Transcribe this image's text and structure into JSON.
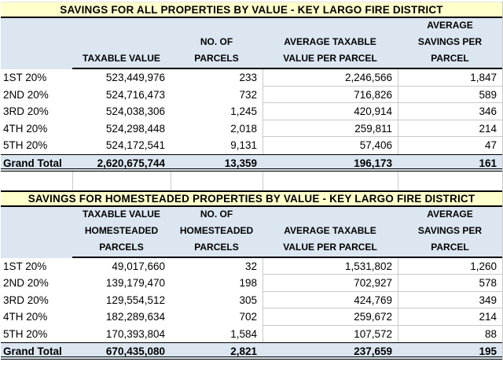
{
  "colors": {
    "title_bg": "#FFFFCC",
    "band_bg": "#DCE6F1",
    "gridline": "#C9C9C9",
    "rule": "#000000"
  },
  "tables": [
    {
      "title": "SAVINGS FOR ALL PROPERTIES BY VALUE - KEY LARGO FIRE DISTRICT",
      "columns": [
        "",
        "TAXABLE VALUE",
        "NO. OF\nPARCELS",
        "AVERAGE TAXABLE\nVALUE PER PARCEL",
        "AVERAGE\nSAVINGS PER\nPARCEL"
      ],
      "rows": [
        {
          "label": "1ST 20%",
          "values": [
            "523,449,976",
            "233",
            "2,246,566",
            "1,847"
          ]
        },
        {
          "label": "2ND 20%",
          "values": [
            "524,716,473",
            "732",
            "716,826",
            "589"
          ]
        },
        {
          "label": "3RD 20%",
          "values": [
            "524,038,306",
            "1,245",
            "420,914",
            "346"
          ]
        },
        {
          "label": "4TH 20%",
          "values": [
            "524,298,448",
            "2,018",
            "259,811",
            "214"
          ]
        },
        {
          "label": "5TH 20%",
          "values": [
            "524,172,541",
            "9,131",
            "57,406",
            "47"
          ]
        }
      ],
      "grand_total": {
        "label": "Grand Total",
        "values": [
          "2,620,675,744",
          "13,359",
          "196,173",
          "161"
        ]
      }
    },
    {
      "title": "SAVINGS FOR HOMESTEADED PROPERTIES BY VALUE - KEY LARGO FIRE DISTRICT",
      "columns": [
        "",
        "TAXABLE VALUE\nHOMESTEADED\nPARCELS",
        "NO. OF\nHOMESTEADED\nPARCELS",
        "AVERAGE TAXABLE\nVALUE PER PARCEL",
        "AVERAGE\nSAVINGS PER\nPARCEL"
      ],
      "rows": [
        {
          "label": "1ST 20%",
          "values": [
            "49,017,660",
            "32",
            "1,531,802",
            "1,260"
          ]
        },
        {
          "label": "2ND 20%",
          "values": [
            "139,179,470",
            "198",
            "702,927",
            "578"
          ]
        },
        {
          "label": "3RD 20%",
          "values": [
            "129,554,512",
            "305",
            "424,769",
            "349"
          ]
        },
        {
          "label": "4TH 20%",
          "values": [
            "182,289,634",
            "702",
            "259,672",
            "214"
          ]
        },
        {
          "label": "5TH 20%",
          "values": [
            "170,393,804",
            "1,584",
            "107,572",
            "88"
          ]
        }
      ],
      "grand_total": {
        "label": "Grand Total",
        "values": [
          "670,435,080",
          "2,821",
          "237,659",
          "195"
        ]
      }
    }
  ]
}
